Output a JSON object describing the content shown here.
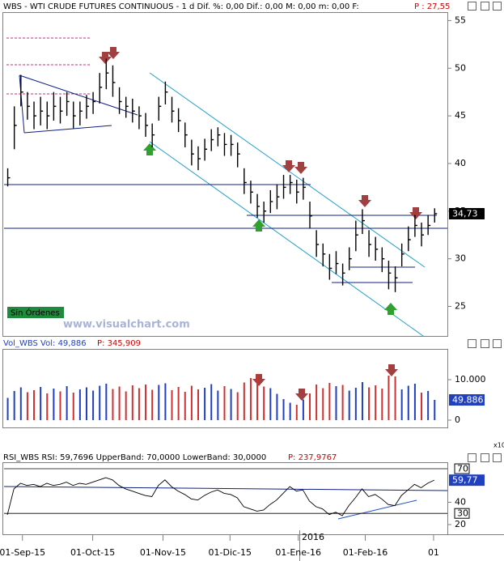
{
  "chart_data": [
    {
      "type": "ohlc",
      "title": "WBS - WTI CRUDE FUTURES CONTINUOUS -  1 d Dif. %: 0,00 Dif.: 0,00 M: 0,00 m: 0,00 F:",
      "subtitle": "P : 27,55",
      "last_label": "34,73",
      "annotations": [
        "Sin Órdenes",
        "www.visualchart.com",
        "2016"
      ],
      "xlim": [
        -0.5,
        67
      ],
      "xticks": [
        {
          "value": 2.3,
          "label": "01-Sep-15"
        },
        {
          "value": 13,
          "label": "01-Oct-15"
        },
        {
          "value": 23.7,
          "label": "01-Nov-15"
        },
        {
          "value": 33.9,
          "label": "01-Dic-15"
        },
        {
          "value": 44.3,
          "label": "01-Ene-16"
        },
        {
          "value": 54.5,
          "label": "01-Feb-16"
        },
        {
          "value": 64.9,
          "label": "01"
        }
      ],
      "ylim": [
        21.9,
        55.8
      ],
      "yticks": [
        25,
        30,
        35,
        40,
        45,
        50,
        55
      ],
      "color": "#000000",
      "high": [
        39.5,
        46,
        49.3,
        47.5,
        46.5,
        47,
        46.5,
        47.5,
        47,
        47.5,
        46.5,
        46.5,
        47.2,
        47.5,
        49.5,
        51,
        50.3,
        48,
        47,
        46.8,
        46,
        45.3,
        44.2,
        47,
        48.6,
        47,
        45.8,
        44.3,
        42.5,
        41.8,
        42.6,
        43.6,
        43.8,
        43.2,
        43,
        42.2,
        39.5,
        38.2,
        36.8,
        36,
        37.2,
        37.8,
        38.8,
        38.8,
        38.3,
        38.5,
        36,
        33,
        31.6,
        30.5,
        30.8,
        29.5,
        31.2,
        34,
        35.2,
        33,
        32.3,
        31.2,
        29.8,
        29.2,
        31.6,
        33.4,
        34.6,
        33.8,
        34.6,
        35.3
      ],
      "low": [
        37.6,
        41.5,
        46,
        44.6,
        43.6,
        44,
        43.6,
        44.5,
        44.2,
        45,
        43.7,
        44,
        44.7,
        45.2,
        46.3,
        47.8,
        47,
        45.2,
        44.8,
        44.3,
        43.6,
        42.8,
        41.7,
        44.5,
        46.2,
        44.3,
        43.3,
        41.7,
        39.8,
        39.3,
        40.3,
        41.3,
        41.8,
        40.8,
        40.8,
        39.6,
        36.8,
        35.8,
        34.3,
        33.8,
        34.8,
        35.2,
        36.3,
        36.8,
        35.8,
        36.2,
        33.2,
        30.2,
        29.2,
        27.8,
        28.4,
        27.2,
        28.8,
        30.8,
        32.6,
        30.2,
        29.8,
        28.6,
        26.8,
        26.5,
        29.2,
        30.8,
        32.3,
        31.3,
        32.5,
        33.8
      ],
      "close": [
        38.5,
        44,
        47.5,
        46,
        45,
        45.5,
        45,
        46,
        45.5,
        46.5,
        45,
        45.5,
        46,
        46.5,
        48,
        49.5,
        48.5,
        46.5,
        46,
        45.5,
        45,
        44,
        43,
        46,
        47.5,
        45.5,
        44.5,
        43,
        41,
        40.5,
        41.5,
        42.5,
        43,
        42,
        42,
        41,
        38,
        37,
        35.5,
        35,
        36,
        36.5,
        37.5,
        38,
        37,
        37.5,
        34.5,
        31.5,
        30.5,
        29,
        29.5,
        28.5,
        30,
        32.5,
        34,
        31.5,
        31,
        30,
        28.5,
        28,
        30.5,
        32,
        33.5,
        32.5,
        33.5,
        34.73
      ]
    },
    {
      "type": "bar",
      "title": "Vol_WBS Vol: 49,886",
      "subtitle": "P: 345,909",
      "last_label": "49.886",
      "annotations": [
        "x10"
      ],
      "ylim": [
        -1800,
        17400
      ],
      "yticks": [
        0,
        {
          "value": 10000,
          "label": "10.000"
        }
      ],
      "up_color": "#2040c0",
      "down_color": "#d03030",
      "values": [
        5500,
        7200,
        8100,
        6900,
        7400,
        8200,
        6600,
        7800,
        7100,
        8400,
        6800,
        7600,
        8100,
        7300,
        8500,
        9000,
        7700,
        8300,
        7100,
        8600,
        7900,
        8800,
        7500,
        8700,
        9100,
        7400,
        8200,
        7000,
        8500,
        7600,
        8000,
        8900,
        7300,
        8400,
        7700,
        6900,
        9300,
        10400,
        11400,
        8300,
        7900,
        6500,
        5200,
        4300,
        3800,
        5100,
        6600,
        8800,
        7900,
        9200,
        8400,
        8700,
        7300,
        8000,
        9400,
        8100,
        8600,
        7800,
        11000,
        10800,
        7600,
        8500,
        9000,
        6800,
        7200,
        5000
      ]
    },
    {
      "type": "line",
      "title": "RSI_WBS RSI: 59,7696 UpperBand: 70,0000 LowerBand: 30,0000",
      "subtitle": "P: 237,9767",
      "last_label": "59,77",
      "ylim": [
        11.3,
        75.1
      ],
      "yticks": [
        20,
        40
      ],
      "bands": [
        70,
        30
      ],
      "color": "#000000",
      "values": [
        28.7,
        52,
        57,
        55,
        56,
        54,
        57,
        55,
        56,
        58,
        55,
        57,
        56,
        58,
        60,
        62,
        60,
        55,
        52,
        50,
        48,
        46,
        45,
        55,
        60,
        54,
        50,
        47,
        43,
        42,
        46,
        49,
        51,
        48,
        47,
        44,
        36,
        34,
        32,
        33,
        38,
        42,
        48,
        54,
        50,
        51,
        41,
        36,
        34,
        29,
        31,
        28,
        37,
        44,
        52,
        45,
        47,
        43,
        38,
        37,
        46,
        51,
        56,
        53,
        57,
        59.77
      ]
    }
  ]
}
